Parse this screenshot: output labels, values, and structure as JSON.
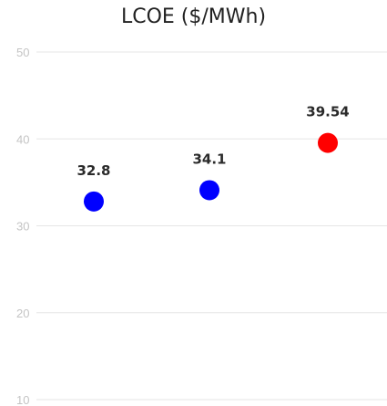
{
  "chart_data": {
    "type": "scatter",
    "title": "LCOE ($/MWh)",
    "xlabel": "",
    "ylabel": "",
    "x": [
      1,
      2,
      3
    ],
    "ylim": [
      10,
      50
    ],
    "yticks": [
      10,
      20,
      30,
      40,
      50
    ],
    "grid": true,
    "legend": "none",
    "points": [
      {
        "x": 1,
        "y": 32.8,
        "label": "32.8",
        "color": "#0000ff"
      },
      {
        "x": 2,
        "y": 34.1,
        "label": "34.1",
        "color": "#0000ff"
      },
      {
        "x": 3,
        "y": 39.54,
        "label": "39.54",
        "color": "#ff0000"
      }
    ]
  }
}
